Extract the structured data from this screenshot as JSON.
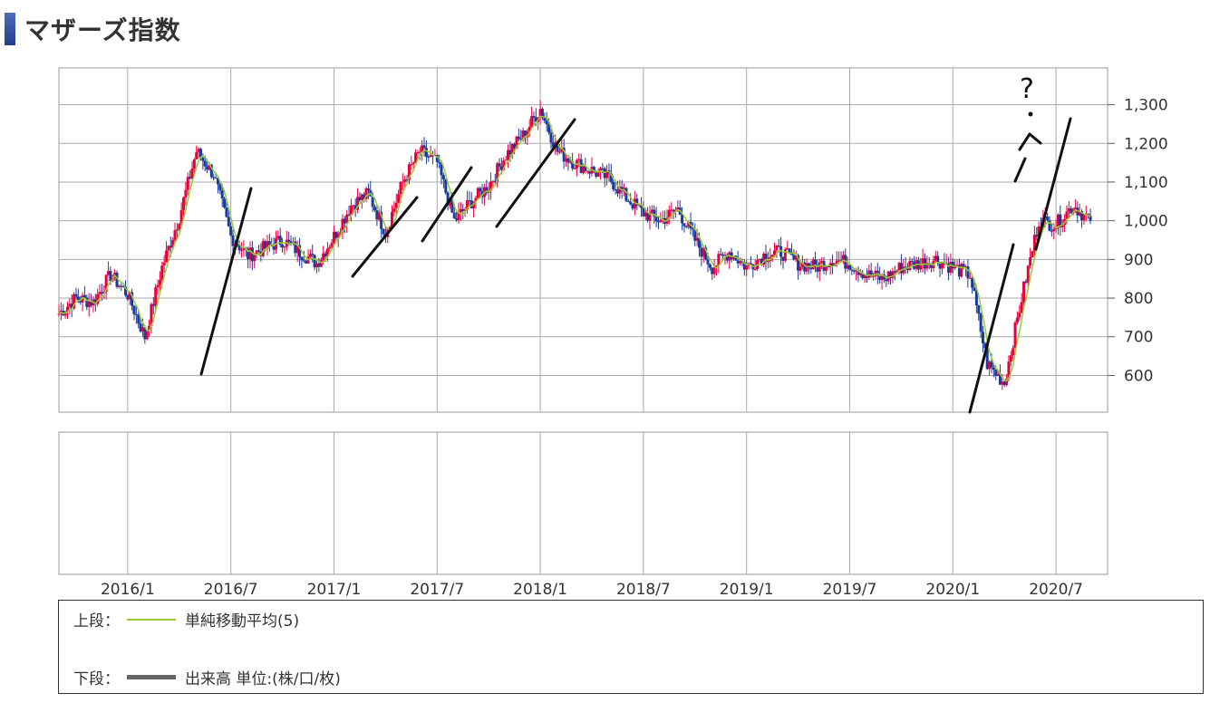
{
  "header": {
    "title": "マザーズ指数",
    "marker_color": "#2a4fa0"
  },
  "legend": {
    "upper_label": "上段：",
    "upper_item": "単純移動平均(5)",
    "upper_color": "#99cc33",
    "lower_label": "下段：",
    "lower_item": "出来高 単位:(株/口/枚)",
    "lower_color": "#666666"
  },
  "chart_data": {
    "type": "candlestick",
    "x_tick_labels": [
      "2016/1",
      "2016/7",
      "2017/1",
      "2017/7",
      "2018/1",
      "2018/7",
      "2019/1",
      "2019/7",
      "2020/1",
      "2020/7"
    ],
    "y_tick_labels": [
      "600",
      "700",
      "800",
      "900",
      "1,000",
      "1,100",
      "1,200",
      "1,300"
    ],
    "y_ticks": [
      600,
      700,
      800,
      900,
      1000,
      1100,
      1200,
      1300
    ],
    "ylim": [
      505,
      1395
    ],
    "x_range": [
      "2015/09",
      "2020/10"
    ],
    "grid": true,
    "up_color": "#e8003c",
    "down_color": "#1a3a9e",
    "ma_color": "#99cc33",
    "close_series": {
      "x": [
        "2015/09",
        "2015/10",
        "2015/11",
        "2015/12",
        "2016/01",
        "2016/02",
        "2016/03",
        "2016/04",
        "2016/05",
        "2016/06",
        "2016/07",
        "2016/08",
        "2016/09",
        "2016/10",
        "2016/11",
        "2016/12",
        "2017/01",
        "2017/02",
        "2017/03",
        "2017/04",
        "2017/05",
        "2017/06",
        "2017/07",
        "2017/08",
        "2017/09",
        "2017/10",
        "2017/11",
        "2017/12",
        "2018/01",
        "2018/02",
        "2018/03",
        "2018/04",
        "2018/05",
        "2018/06",
        "2018/07",
        "2018/08",
        "2018/09",
        "2018/10",
        "2018/11",
        "2018/12",
        "2019/01",
        "2019/02",
        "2019/03",
        "2019/04",
        "2019/05",
        "2019/06",
        "2019/07",
        "2019/08",
        "2019/09",
        "2019/10",
        "2019/11",
        "2019/12",
        "2020/01",
        "2020/02",
        "2020/03",
        "2020/04",
        "2020/05",
        "2020/06",
        "2020/07",
        "2020/08",
        "2020/09"
      ],
      "values": [
        760,
        800,
        790,
        860,
        810,
        700,
        880,
        1010,
        1180,
        1120,
        960,
        910,
        930,
        950,
        920,
        890,
        960,
        1040,
        1070,
        970,
        1100,
        1180,
        1150,
        1000,
        1050,
        1090,
        1170,
        1220,
        1290,
        1180,
        1150,
        1130,
        1110,
        1060,
        1020,
        1000,
        1030,
        950,
        880,
        920,
        880,
        910,
        920,
        890,
        880,
        900,
        890,
        860,
        850,
        880,
        890,
        900,
        880,
        860,
        630,
        580,
        800,
        1000,
        990,
        1040,
        1000
      ]
    },
    "annotations": [
      "?"
    ]
  }
}
